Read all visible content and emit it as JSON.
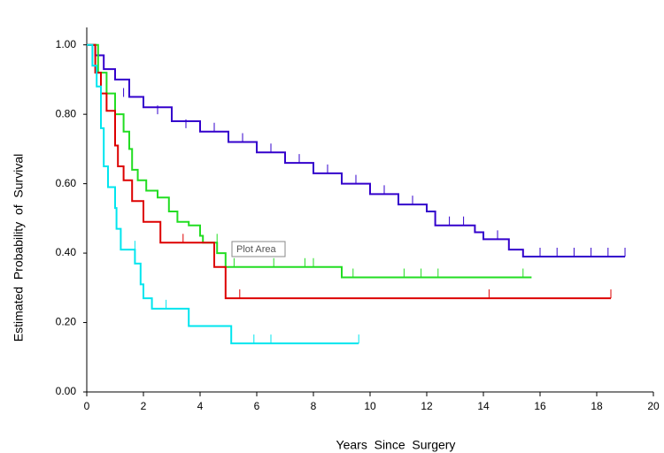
{
  "chart_data": {
    "type": "step",
    "y_label": "Estimated  Probability  of  Survival",
    "x_label": "Years  Since  Surgery",
    "annotation": "Plot Area",
    "xlim": [
      0,
      20
    ],
    "xticks": [
      0,
      2,
      4,
      6,
      8,
      10,
      12,
      14,
      16,
      18,
      20
    ],
    "ylim": [
      0,
      1.04
    ],
    "yticks": [
      {
        "value": 0,
        "label": "0.00"
      },
      {
        "value": 0.2,
        "label": "0.20"
      },
      {
        "value": 0.4,
        "label": "0.40"
      },
      {
        "value": 0.6,
        "label": "0.60"
      },
      {
        "value": 0.8,
        "label": "0.80"
      },
      {
        "value": 1,
        "label": "1.00"
      }
    ],
    "series": [
      {
        "color": "#3300cc",
        "x": [
          0,
          0.3,
          0.6,
          1.0,
          1.5,
          2.0,
          3.0,
          4.0,
          5.0,
          6.0,
          7.0,
          8.0,
          9.0,
          10.0,
          11.0,
          12.0,
          12.3,
          13.7,
          14.0,
          14.9,
          15.4,
          19.0
        ],
        "values": [
          1.0,
          0.97,
          0.93,
          0.9,
          0.85,
          0.82,
          0.78,
          0.75,
          0.72,
          0.69,
          0.66,
          0.63,
          0.6,
          0.57,
          0.54,
          0.52,
          0.48,
          0.46,
          0.44,
          0.41,
          0.39,
          0.39
        ],
        "censor_x": [
          1.3,
          2.5,
          3.5,
          4.5,
          5.5,
          6.5,
          7.5,
          8.5,
          9.5,
          10.5,
          11.5,
          12.8,
          13.3,
          14.5,
          16.0,
          16.6,
          17.2,
          17.8,
          18.4,
          19.0
        ],
        "censor_y": [
          0.85,
          0.8,
          0.76,
          0.75,
          0.72,
          0.69,
          0.66,
          0.63,
          0.6,
          0.57,
          0.54,
          0.48,
          0.48,
          0.44,
          0.39,
          0.39,
          0.39,
          0.39,
          0.39,
          0.39
        ]
      },
      {
        "color": "#22dd22",
        "x": [
          0,
          0.4,
          0.7,
          1.0,
          1.3,
          1.5,
          1.6,
          1.8,
          2.1,
          2.5,
          2.9,
          3.2,
          3.6,
          4.0,
          4.1,
          4.6,
          4.9,
          9.0,
          9.0,
          15.7
        ],
        "values": [
          1.0,
          0.92,
          0.86,
          0.8,
          0.75,
          0.7,
          0.64,
          0.61,
          0.58,
          0.56,
          0.52,
          0.49,
          0.48,
          0.45,
          0.43,
          0.4,
          0.36,
          0.36,
          0.33,
          0.33
        ],
        "censor_x": [
          2.9,
          4.6,
          5.2,
          6.6,
          7.7,
          8.0,
          9.4,
          11.2,
          11.8,
          12.4,
          15.4
        ],
        "censor_y": [
          0.52,
          0.43,
          0.36,
          0.36,
          0.36,
          0.36,
          0.33,
          0.33,
          0.33,
          0.33,
          0.33
        ]
      },
      {
        "color": "#dd0000",
        "x": [
          0,
          0.3,
          0.5,
          0.7,
          1.0,
          1.1,
          1.3,
          1.6,
          2.0,
          2.6,
          4.5,
          4.9,
          18.5
        ],
        "values": [
          1.0,
          0.92,
          0.86,
          0.81,
          0.71,
          0.65,
          0.61,
          0.55,
          0.49,
          0.43,
          0.36,
          0.27,
          0.27
        ],
        "censor_x": [
          3.4,
          5.4,
          14.2,
          18.5
        ],
        "censor_y": [
          0.43,
          0.27,
          0.27,
          0.27
        ]
      },
      {
        "color": "#00e5ee",
        "x": [
          0,
          0.2,
          0.35,
          0.5,
          0.6,
          0.75,
          1.0,
          1.05,
          1.2,
          1.7,
          1.9,
          2.0,
          2.3,
          3.6,
          5.1,
          9.6
        ],
        "values": [
          1.0,
          0.94,
          0.88,
          0.76,
          0.65,
          0.59,
          0.53,
          0.47,
          0.41,
          0.37,
          0.31,
          0.27,
          0.24,
          0.19,
          0.14,
          0.14
        ],
        "censor_x": [
          1.7,
          2.3,
          2.8,
          5.9,
          6.5,
          9.6
        ],
        "censor_y": [
          0.41,
          0.24,
          0.24,
          0.14,
          0.14,
          0.14
        ]
      }
    ]
  }
}
